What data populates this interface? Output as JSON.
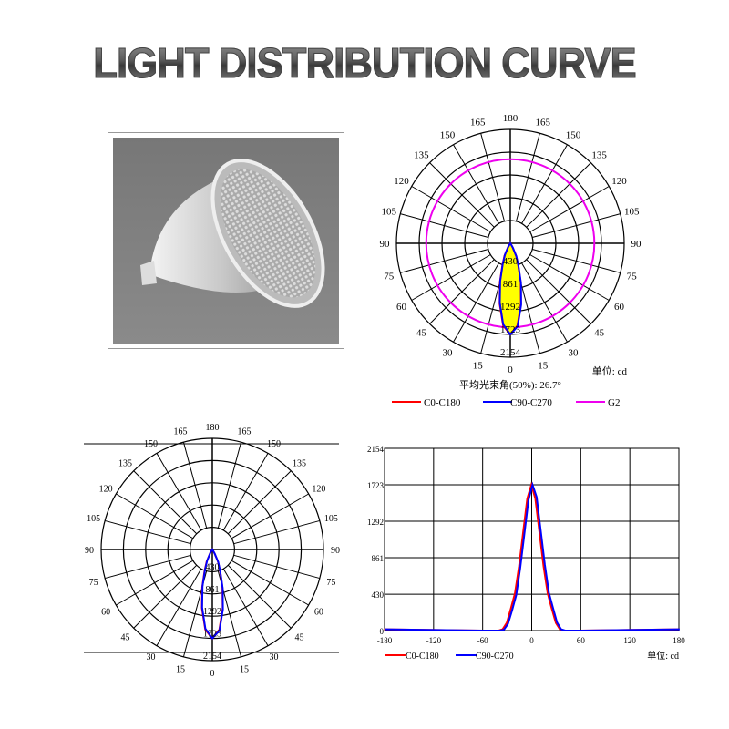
{
  "title": "LIGHT DISTRIBUTION CURVE",
  "colors": {
    "c0_c180": "#ff0000",
    "c90_c270": "#0000ff",
    "g2": "#ee00ee",
    "fill": "#ffff00",
    "grid": "#000000"
  },
  "top_polar": {
    "unit_label": "单位: cd",
    "beam_angle_label": "平均光束角(50%): 26.7°",
    "legend": [
      "C0-C180",
      "C90-C270",
      "G2"
    ]
  },
  "bottom_polar": {},
  "cartesian": {
    "unit_label": "单位: cd",
    "legend": [
      "C0-C180",
      "C90-C270"
    ]
  },
  "chart_data": [
    {
      "type": "polar",
      "angle_ticks": [
        "0",
        "15",
        "30",
        "45",
        "60",
        "75",
        "90",
        "105",
        "120",
        "135",
        "150",
        "165",
        "180"
      ],
      "radial_ticks": [
        "430",
        "861",
        "1292",
        "1723",
        "2154"
      ],
      "rmax": 2154,
      "angles": [
        -45,
        -40,
        -35,
        -30,
        -25,
        -20,
        -15,
        -10,
        -5,
        0,
        5,
        10,
        15,
        20,
        25,
        30,
        35,
        40,
        45
      ],
      "series": [
        {
          "name": "C0-C180",
          "values": [
            0,
            0,
            15,
            90,
            260,
            440,
            760,
            1160,
            1560,
            1723,
            1560,
            1160,
            760,
            440,
            260,
            90,
            15,
            0,
            0
          ]
        },
        {
          "name": "C90-C270",
          "values": [
            0,
            0,
            10,
            80,
            240,
            420,
            740,
            1140,
            1540,
            1723,
            1580,
            1180,
            780,
            450,
            270,
            95,
            15,
            0,
            0
          ]
        },
        {
          "name": "G2",
          "constant": 1590
        }
      ]
    },
    {
      "type": "polar",
      "angle_ticks": [
        "0",
        "15",
        "30",
        "45",
        "60",
        "75",
        "90",
        "105",
        "120",
        "135",
        "150",
        "165",
        "180"
      ],
      "radial_ticks": [
        "430",
        "861",
        "1292",
        "1723",
        "2154"
      ],
      "rmax": 2154,
      "angles": [
        -45,
        -40,
        -35,
        -30,
        -25,
        -20,
        -15,
        -10,
        -5,
        0,
        5,
        10,
        15,
        20,
        25,
        30,
        35,
        40,
        45
      ],
      "series": [
        {
          "name": "C0-C180",
          "values": [
            0,
            0,
            15,
            90,
            260,
            440,
            760,
            1160,
            1560,
            1723,
            1560,
            1160,
            760,
            440,
            260,
            90,
            15,
            0,
            0
          ]
        },
        {
          "name": "C90-C270",
          "values": [
            0,
            0,
            10,
            80,
            240,
            420,
            740,
            1140,
            1540,
            1723,
            1580,
            1180,
            780,
            450,
            270,
            95,
            15,
            0,
            0
          ]
        }
      ]
    },
    {
      "type": "line",
      "xlim": [
        -180,
        180
      ],
      "ylim": [
        0,
        2154
      ],
      "x_ticks": [
        "-180",
        "-120",
        "-60",
        "0",
        "60",
        "120",
        "180"
      ],
      "y_ticks": [
        "0",
        "430",
        "861",
        "1292",
        "1723",
        "2154"
      ],
      "grid": true,
      "legend_placement": "bottom-left",
      "x": [
        -180,
        -60,
        -40,
        -35,
        -30,
        -25,
        -20,
        -15,
        -10,
        -5,
        0,
        5,
        10,
        15,
        20,
        25,
        30,
        35,
        40,
        60,
        180
      ],
      "series": [
        {
          "name": "C0-C180",
          "values": [
            15,
            0,
            0,
            15,
            90,
            260,
            440,
            760,
            1160,
            1560,
            1723,
            1560,
            1160,
            760,
            440,
            260,
            90,
            15,
            0,
            0,
            15
          ]
        },
        {
          "name": "C90-C270",
          "values": [
            15,
            0,
            0,
            10,
            80,
            240,
            420,
            740,
            1140,
            1540,
            1723,
            1580,
            1180,
            780,
            450,
            270,
            95,
            15,
            0,
            0,
            15
          ]
        }
      ]
    }
  ]
}
